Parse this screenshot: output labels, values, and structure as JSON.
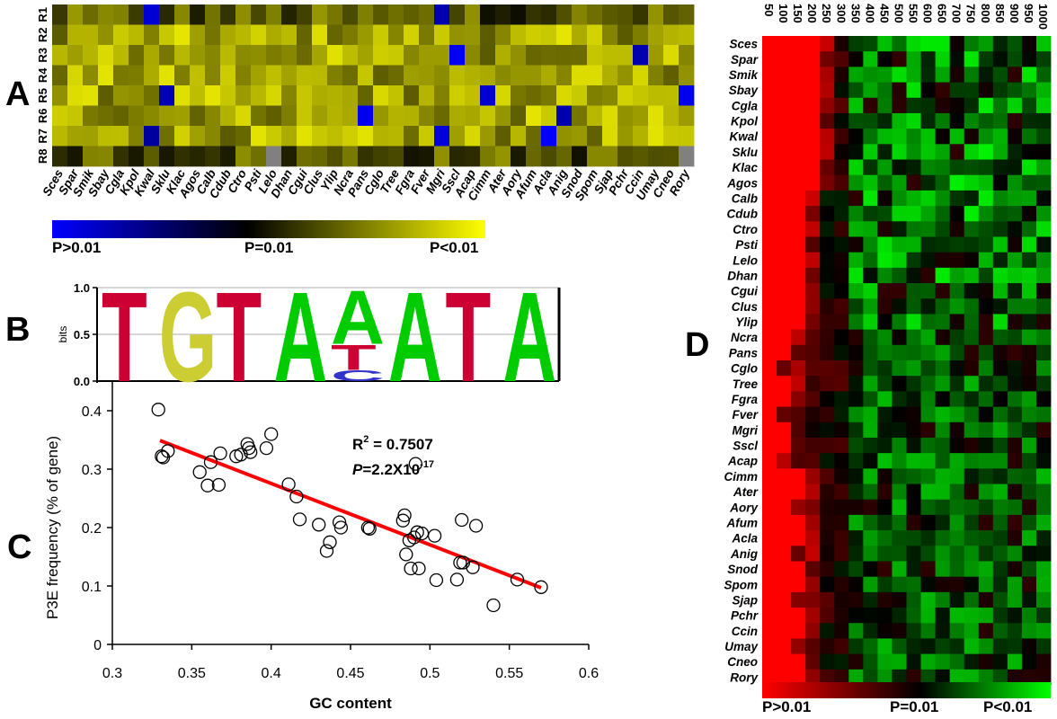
{
  "panels": {
    "a": "A",
    "b": "B",
    "c": "C",
    "d": "D"
  },
  "species": [
    "Sces",
    "Spar",
    "Smik",
    "Sbay",
    "Cgla",
    "Kpol",
    "Kwal",
    "Sklu",
    "Klac",
    "Agos",
    "Calb",
    "Cdub",
    "Ctro",
    "Psti",
    "Lelo",
    "Dhan",
    "Cgui",
    "Clus",
    "Ylip",
    "Ncra",
    "Pans",
    "Cglo",
    "Tree",
    "Fgra",
    "Fver",
    "Mgri",
    "Sscl",
    "Acap",
    "Cimm",
    "Ater",
    "Aory",
    "Afum",
    "Acla",
    "Anig",
    "Snod",
    "Spom",
    "Sjap",
    "Pchr",
    "Ccin",
    "Umay",
    "Cneo",
    "Rory"
  ],
  "heatmap_a": {
    "rows": [
      "R1",
      "R2",
      "R3",
      "R4",
      "R5",
      "R6",
      "R7",
      "R8"
    ],
    "colorbar": {
      "low_label": "P>0.01",
      "mid_label": "P=0.01",
      "high_label": "P<0.01",
      "low_color": "#0000ff",
      "mid_color": "#000000",
      "high_color": "#ffff00"
    }
  },
  "logo": {
    "ylabel": "bits",
    "yticks": [
      "0.0",
      "0.5",
      "1.0"
    ],
    "letters": [
      {
        "pos": 1,
        "stack": [
          {
            "ch": "T",
            "bits": 1.0,
            "color": "#cc0033"
          }
        ]
      },
      {
        "pos": 2,
        "stack": [
          {
            "ch": "G",
            "bits": 1.0,
            "color": "#cccc33"
          }
        ]
      },
      {
        "pos": 3,
        "stack": [
          {
            "ch": "T",
            "bits": 1.0,
            "color": "#cc0033"
          }
        ]
      },
      {
        "pos": 4,
        "stack": [
          {
            "ch": "A",
            "bits": 1.0,
            "color": "#00cc00"
          }
        ]
      },
      {
        "pos": 5,
        "stack": [
          {
            "ch": "C",
            "bits": 0.12,
            "color": "#3333cc"
          },
          {
            "ch": "T",
            "bits": 0.28,
            "color": "#cc0033"
          },
          {
            "ch": "A",
            "bits": 0.6,
            "color": "#00cc00"
          }
        ]
      },
      {
        "pos": 6,
        "stack": [
          {
            "ch": "A",
            "bits": 1.0,
            "color": "#00cc00"
          }
        ]
      },
      {
        "pos": 7,
        "stack": [
          {
            "ch": "T",
            "bits": 1.0,
            "color": "#cc0033"
          }
        ]
      },
      {
        "pos": 8,
        "stack": [
          {
            "ch": "A",
            "bits": 1.0,
            "color": "#00cc00"
          }
        ]
      }
    ]
  },
  "annotation": {
    "r2_prefix": "R",
    "r2_sup": "2",
    "r2_value": " = 0.7507",
    "p_label": "P",
    "p_value": "=2.2X10",
    "p_exp": "-17"
  },
  "heatmap_d": {
    "columns": [
      "50",
      "100",
      "150",
      "200",
      "250",
      "300",
      "350",
      "400",
      "450",
      "500",
      "550",
      "600",
      "650",
      "700",
      "750",
      "800",
      "850",
      "900",
      "950",
      "1000"
    ],
    "colorbar": {
      "low_label": "P>0.01",
      "mid_label": "P=0.01",
      "high_label": "P<0.01",
      "low_color": "#ff0000",
      "mid_color": "#000000",
      "high_color": "#00ff00"
    }
  },
  "chart_data": [
    {
      "type": "heatmap",
      "panel": "A",
      "rows": [
        "R1",
        "R2",
        "R3",
        "R4",
        "R5",
        "R6",
        "R7",
        "R8"
      ],
      "columns": [
        "Sces",
        "Spar",
        "Smik",
        "Sbay",
        "Cgla",
        "Kpol",
        "Kwal",
        "Sklu",
        "Klac",
        "Agos",
        "Calb",
        "Cdub",
        "Ctro",
        "Psti",
        "Lelo",
        "Dhan",
        "Cgui",
        "Clus",
        "Ylip",
        "Ncra",
        "Pans",
        "Cglo",
        "Tree",
        "Fgra",
        "Fver",
        "Mgri",
        "Sscl",
        "Acap",
        "Cimm",
        "Ater",
        "Aory",
        "Afum",
        "Acla",
        "Anig",
        "Snod",
        "Spom",
        "Sjap",
        "Pchr",
        "Ccin",
        "Umay",
        "Cneo",
        "Rory"
      ],
      "scale": "P>0.01 (blue) to P=0.01 (black) to P<0.01 (yellow)"
    },
    {
      "type": "scatter",
      "panel": "C",
      "xlabel": "GC content",
      "ylabel": "P3E frequency (% of gene)",
      "xlim": [
        0.3,
        0.6
      ],
      "ylim": [
        0,
        0.45
      ],
      "xticks": [
        0.3,
        0.35,
        0.4,
        0.45,
        0.5,
        0.55,
        0.6
      ],
      "yticks": [
        0,
        0.1,
        0.2,
        0.3,
        0.4
      ],
      "points": [
        [
          0.329,
          0.402
        ],
        [
          0.331,
          0.322
        ],
        [
          0.332,
          0.32
        ],
        [
          0.335,
          0.331
        ],
        [
          0.355,
          0.295
        ],
        [
          0.36,
          0.272
        ],
        [
          0.362,
          0.312
        ],
        [
          0.367,
          0.273
        ],
        [
          0.368,
          0.327
        ],
        [
          0.378,
          0.322
        ],
        [
          0.381,
          0.325
        ],
        [
          0.385,
          0.343
        ],
        [
          0.386,
          0.336
        ],
        [
          0.387,
          0.329
        ],
        [
          0.397,
          0.336
        ],
        [
          0.4,
          0.36
        ],
        [
          0.411,
          0.274
        ],
        [
          0.416,
          0.253
        ],
        [
          0.418,
          0.214
        ],
        [
          0.43,
          0.205
        ],
        [
          0.435,
          0.16
        ],
        [
          0.437,
          0.175
        ],
        [
          0.443,
          0.209
        ],
        [
          0.444,
          0.2
        ],
        [
          0.461,
          0.2
        ],
        [
          0.462,
          0.198
        ],
        [
          0.483,
          0.212
        ],
        [
          0.484,
          0.221
        ],
        [
          0.485,
          0.154
        ],
        [
          0.487,
          0.178
        ],
        [
          0.488,
          0.13
        ],
        [
          0.49,
          0.183
        ],
        [
          0.491,
          0.309
        ],
        [
          0.492,
          0.192
        ],
        [
          0.493,
          0.13
        ],
        [
          0.495,
          0.19
        ],
        [
          0.503,
          0.186
        ],
        [
          0.504,
          0.11
        ],
        [
          0.517,
          0.111
        ],
        [
          0.519,
          0.14
        ],
        [
          0.52,
          0.213
        ],
        [
          0.521,
          0.14
        ],
        [
          0.527,
          0.132
        ],
        [
          0.529,
          0.203
        ],
        [
          0.54,
          0.067
        ],
        [
          0.555,
          0.111
        ],
        [
          0.57,
          0.098
        ]
      ],
      "fit": {
        "x": [
          0.33,
          0.57
        ],
        "y": [
          0.349,
          0.097
        ]
      },
      "annotations": [
        "R2 = 0.7507",
        "P=2.2X10-17"
      ]
    },
    {
      "type": "heatmap",
      "panel": "D",
      "rows": [
        "Sces",
        "Spar",
        "Smik",
        "Sbay",
        "Cgla",
        "Kpol",
        "Kwal",
        "Sklu",
        "Klac",
        "Agos",
        "Calb",
        "Cdub",
        "Ctro",
        "Psti",
        "Lelo",
        "Dhan",
        "Cgui",
        "Clus",
        "Ylip",
        "Ncra",
        "Pans",
        "Cglo",
        "Tree",
        "Fgra",
        "Fver",
        "Mgri",
        "Sscl",
        "Acap",
        "Cimm",
        "Ater",
        "Aory",
        "Afum",
        "Acla",
        "Anig",
        "Snod",
        "Spom",
        "Sjap",
        "Pchr",
        "Ccin",
        "Umay",
        "Cneo",
        "Rory"
      ],
      "columns": [
        "50",
        "100",
        "150",
        "200",
        "250",
        "300",
        "350",
        "400",
        "450",
        "500",
        "550",
        "600",
        "650",
        "700",
        "750",
        "800",
        "850",
        "900",
        "950",
        "1000"
      ],
      "scale": "P>0.01 (red) to P=0.01 (black) to P<0.01 (green)"
    }
  ]
}
